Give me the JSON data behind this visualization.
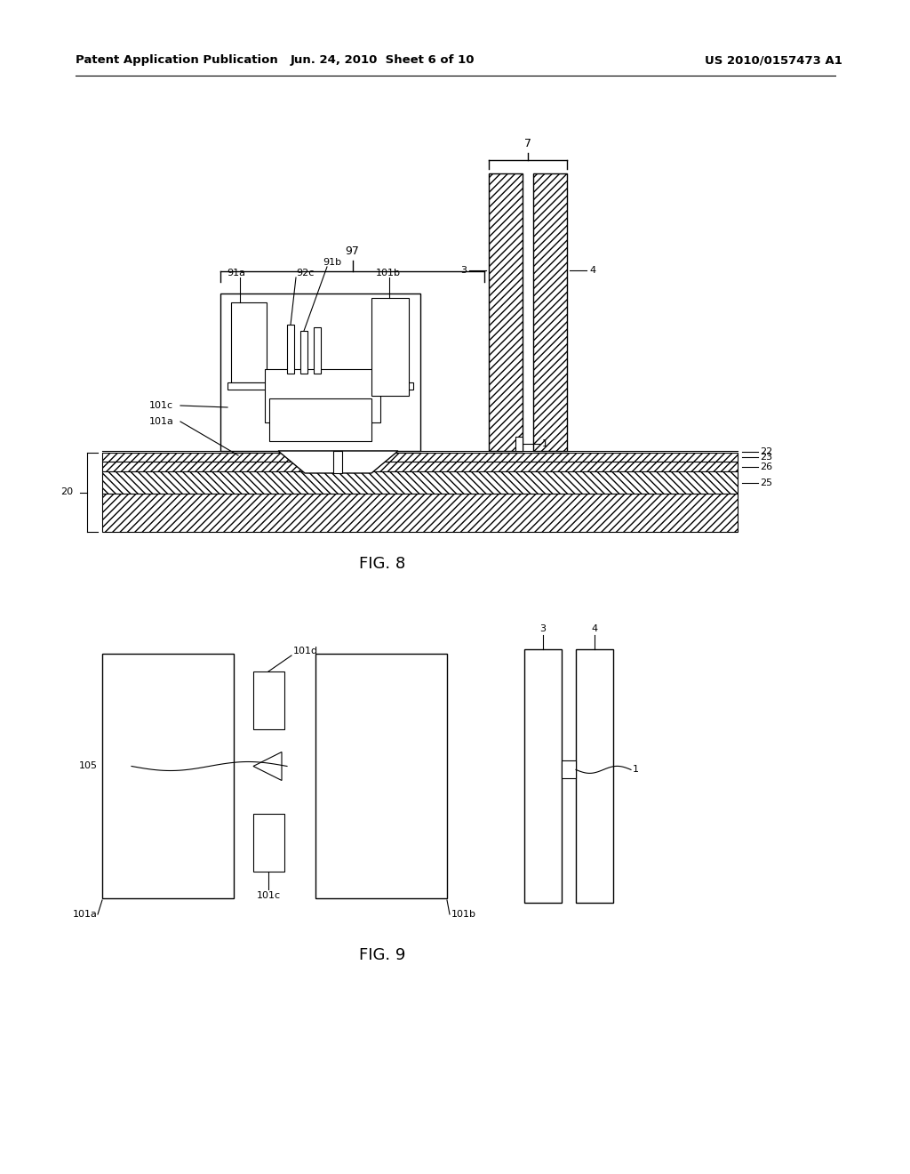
{
  "bg_color": "#ffffff",
  "header_left": "Patent Application Publication",
  "header_mid": "Jun. 24, 2010  Sheet 6 of 10",
  "header_right": "US 2010/0157473 A1",
  "fig8_label": "FIG. 8",
  "fig9_label": "FIG. 9",
  "lc": "#000000"
}
